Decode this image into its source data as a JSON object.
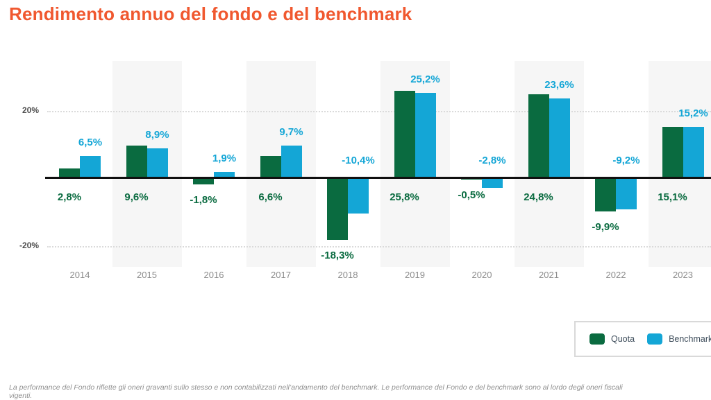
{
  "title": "Rendimento annuo del fondo e del benchmark",
  "colors": {
    "title_accent": "#f0582f",
    "quota_green": "#0a6b40",
    "benchmark_blue": "#14a6d6",
    "stripe_gray": "#f6f6f6",
    "axis_black": "#101010",
    "year_gray": "#8c8c8c"
  },
  "axis": {
    "ticks": [
      {
        "label": "20%",
        "value": 20
      },
      {
        "label": "-20%",
        "value": -20
      }
    ]
  },
  "chart_data": {
    "type": "bar",
    "title": "Rendimento annuo del fondo e del benchmark",
    "categories": [
      "2014",
      "2015",
      "2016",
      "2017",
      "2018",
      "2019",
      "2020",
      "2021",
      "2022",
      "2023"
    ],
    "series": [
      {
        "name": "Quota",
        "color": "#0a6b40",
        "values": [
          2.8,
          9.6,
          -1.8,
          6.6,
          -18.3,
          25.8,
          -0.5,
          24.8,
          -9.9,
          15.1
        ],
        "labels": [
          "2,8%",
          "9,6%",
          "-1,8%",
          "6,6%",
          "-18,3%",
          "25,8%",
          "-0,5%",
          "24,8%",
          "-9,9%",
          "15,1%"
        ]
      },
      {
        "name": "Benchmark",
        "color": "#14a6d6",
        "values": [
          6.5,
          8.9,
          1.9,
          9.7,
          -10.4,
          25.2,
          -2.8,
          23.6,
          -9.2,
          15.2
        ],
        "labels": [
          "6,5%",
          "8,9%",
          "1,9%",
          "9,7%",
          "-10,4%",
          "25,2%",
          "-2,8%",
          "23,6%",
          "-9,2%",
          "15,2%"
        ]
      }
    ],
    "xlabel": "",
    "ylabel": "",
    "ylim": [
      -26,
      35
    ],
    "grid": "horizontal dotted at 20% and -20%",
    "legend_position": "bottom-right"
  },
  "legend": {
    "items": [
      {
        "label": "Quota",
        "color": "#0a6b40"
      },
      {
        "label": "Benchmark",
        "color": "#14a6d6"
      }
    ]
  },
  "footer": "La performance del Fondo riflette gli oneri gravanti sullo stesso e non contabilizzati nell’andamento del benchmark. Le performance del Fondo e del benchmark sono al lordo degli oneri fiscali vigenti."
}
